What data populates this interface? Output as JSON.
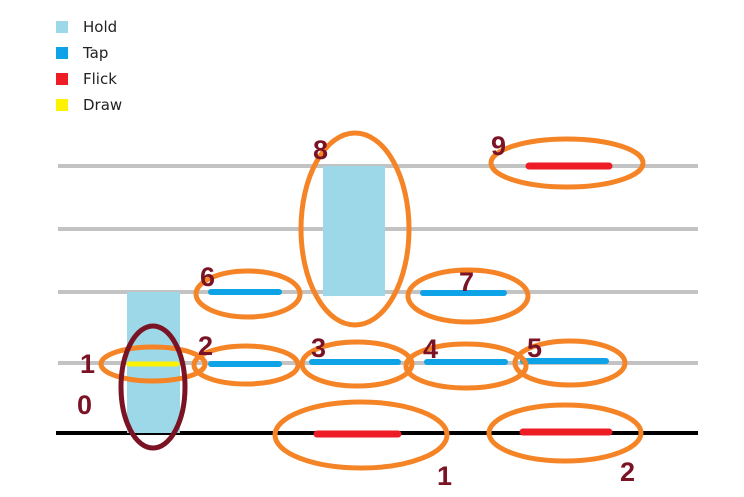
{
  "legend": {
    "items": [
      {
        "label": "Hold",
        "color": "#9dd8e8"
      },
      {
        "label": "Tap",
        "color": "#0ea2e6"
      },
      {
        "label": "Flick",
        "color": "#ee1c24"
      },
      {
        "label": "Draw",
        "color": "#fff200"
      }
    ]
  },
  "colors": {
    "hold": "#9dd8e8",
    "tap": "#0ea2e6",
    "flick": "#ee1c24",
    "draw": "#fff200",
    "lane_line": "#c3c3c3",
    "judgment_line": "#000000",
    "ring": "#f58427",
    "ring_dark": "#7a1324",
    "label": "#7a1324"
  },
  "markers": {
    "zero": "0",
    "one": "1",
    "two": "2",
    "three": "3",
    "four": "4",
    "five": "5",
    "six": "6",
    "seven": "7",
    "eight": "8",
    "nine": "9",
    "bottom_one": "1",
    "bottom_two": "2"
  }
}
